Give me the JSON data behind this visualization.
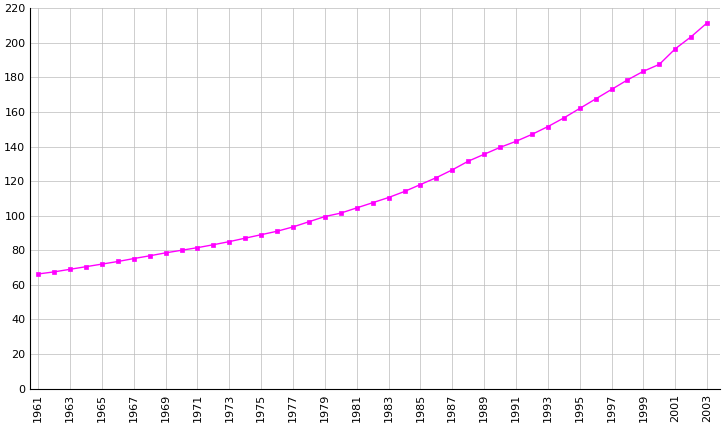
{
  "years": [
    1961,
    1962,
    1963,
    1964,
    1965,
    1966,
    1967,
    1968,
    1969,
    1970,
    1971,
    1972,
    1973,
    1974,
    1975,
    1976,
    1977,
    1978,
    1979,
    1980,
    1981,
    1982,
    1983,
    1984,
    1985,
    1986,
    1987,
    1988,
    1989,
    1990,
    1991,
    1992,
    1993,
    1994,
    1995,
    1996,
    1997,
    1998,
    1999,
    2000,
    2001,
    2002,
    2003
  ],
  "population": [
    66.3,
    67.5,
    69.0,
    70.5,
    72.0,
    73.5,
    75.2,
    76.8,
    78.5,
    80.0,
    81.5,
    83.2,
    85.0,
    87.0,
    89.0,
    91.0,
    93.5,
    96.5,
    99.5,
    101.5,
    104.5,
    107.5,
    110.5,
    114.0,
    118.0,
    122.0,
    126.5,
    131.5,
    135.5,
    139.5,
    143.0,
    147.0,
    151.5,
    156.5,
    162.0,
    167.5,
    173.0,
    178.5,
    183.5,
    187.5,
    196.5,
    203.5,
    211.5
  ],
  "line_color": "#FF00FF",
  "marker_color": "#FF00FF",
  "marker": "s",
  "marker_size": 3.5,
  "line_width": 1.0,
  "background_color": "#ffffff",
  "grid_color": "#bbbbbb",
  "xlim": [
    1960.5,
    2003.8
  ],
  "ylim": [
    0,
    220
  ],
  "yticks": [
    0,
    20,
    40,
    60,
    80,
    100,
    120,
    140,
    160,
    180,
    200,
    220
  ],
  "xticks": [
    1961,
    1963,
    1965,
    1967,
    1969,
    1971,
    1973,
    1975,
    1977,
    1979,
    1981,
    1983,
    1985,
    1987,
    1989,
    1991,
    1993,
    1995,
    1997,
    1999,
    2001,
    2003
  ]
}
